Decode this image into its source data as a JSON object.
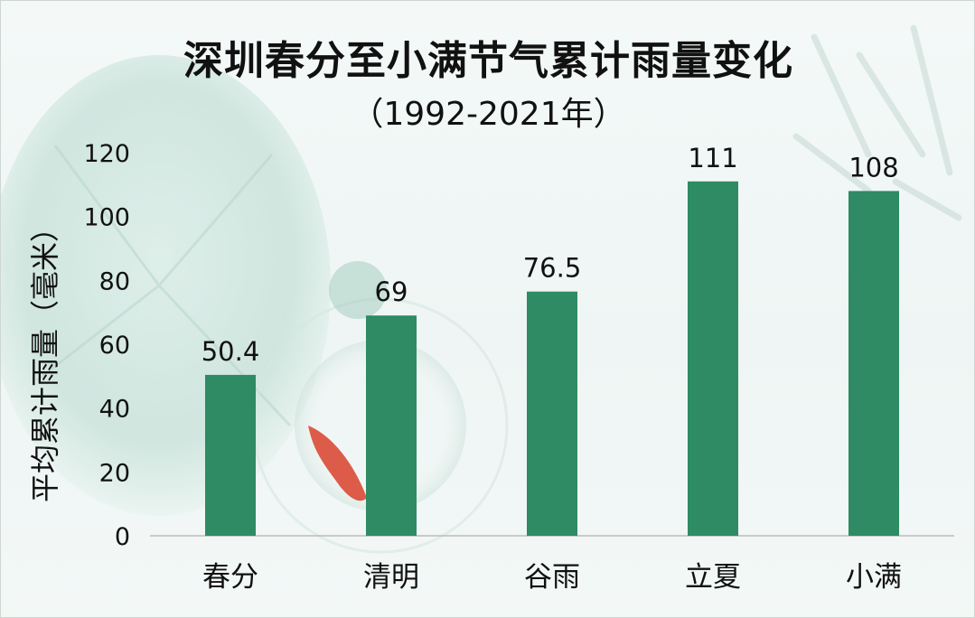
{
  "chart_data": {
    "type": "bar",
    "title": "深圳春分至小满节气累计雨量变化",
    "subtitle": "（1992-2021年）",
    "ylabel": "平均累计雨量（毫米）",
    "xlabel": "",
    "categories": [
      "春分",
      "清明",
      "谷雨",
      "立夏",
      "小满"
    ],
    "values": [
      50.4,
      69,
      76.5,
      111,
      108
    ],
    "data_labels": [
      "50.4",
      "69",
      "76.5",
      "111",
      "108"
    ],
    "ylim": [
      0,
      120
    ],
    "yticks": [
      0,
      20,
      40,
      60,
      80,
      100,
      120
    ],
    "grid": false,
    "legend": "none",
    "bar_color": "#2e8b63"
  }
}
